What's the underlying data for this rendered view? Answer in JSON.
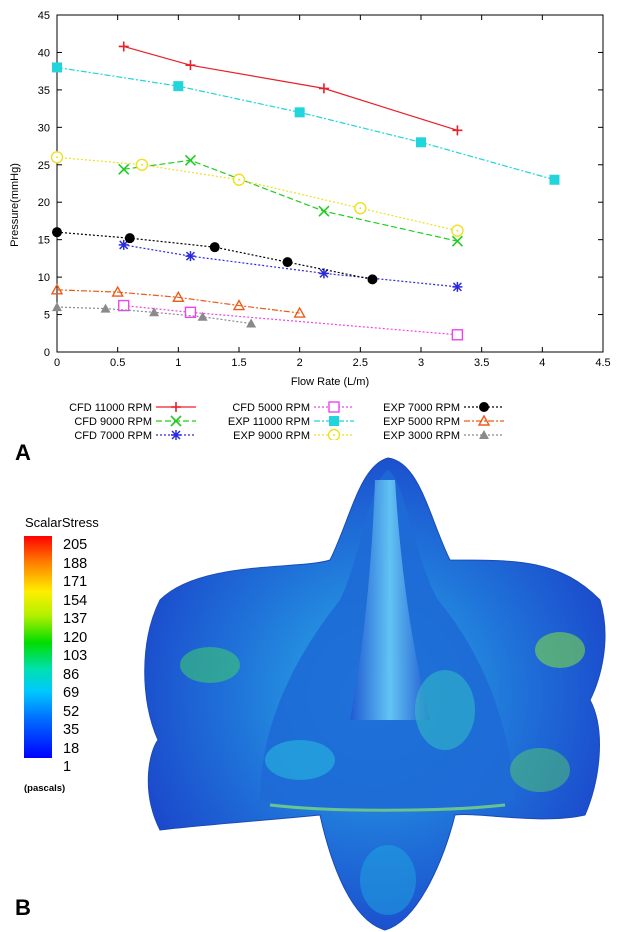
{
  "panel_labels": {
    "a": "A",
    "b": "B"
  },
  "chart_data": {
    "type": "line",
    "xlabel": "Flow Rate (L/m)",
    "ylabel": "Pressure(mmHg)",
    "xlim": [
      0,
      4.5
    ],
    "ylim": [
      0,
      45
    ],
    "xticks": [
      0,
      0.5,
      1,
      1.5,
      2,
      2.5,
      3,
      3.5,
      4,
      4.5
    ],
    "yticks": [
      0,
      5,
      10,
      15,
      20,
      25,
      30,
      35,
      40,
      45
    ],
    "xtick_labels": [
      "0",
      "0.5",
      "1",
      "1.5",
      "2",
      "2.5",
      "3",
      "3.5",
      "4",
      "4.5"
    ],
    "ytick_labels": [
      "0",
      "5",
      "10",
      "15",
      "20",
      "25",
      "30",
      "35",
      "40",
      "45"
    ],
    "grid": false,
    "legend_placement": "below",
    "series": [
      {
        "name": "CFD 11000 RPM",
        "color": "#e8202a",
        "marker": "plus",
        "dash": "solid",
        "x": [
          0.55,
          1.1,
          2.2,
          3.3
        ],
        "y": [
          40.8,
          38.3,
          35.2,
          29.6
        ]
      },
      {
        "name": "CFD 9000 RPM",
        "color": "#22cc22",
        "marker": "x",
        "dash": "dash",
        "x": [
          0.55,
          1.1,
          2.2,
          3.3
        ],
        "y": [
          24.4,
          25.6,
          18.8,
          14.8
        ]
      },
      {
        "name": "CFD 7000 RPM",
        "color": "#2a2ae0",
        "marker": "star",
        "dash": "dot",
        "x": [
          0.55,
          1.1,
          2.2,
          3.3
        ],
        "y": [
          14.3,
          12.8,
          10.5,
          8.7
        ]
      },
      {
        "name": "CFD 5000 RPM",
        "color": "#ee44ee",
        "marker": "square-open",
        "dash": "dot",
        "x": [
          0.55,
          1.1,
          3.3
        ],
        "y": [
          6.2,
          5.3,
          2.3
        ]
      },
      {
        "name": "EXP 11000 RPM",
        "color": "#22d4dc",
        "marker": "square",
        "dash": "dashdot",
        "x": [
          0,
          1,
          2,
          3,
          4.1
        ],
        "y": [
          38,
          35.5,
          32,
          28,
          23
        ]
      },
      {
        "name": "EXP 9000 RPM",
        "color": "#eee022",
        "marker": "circle-open",
        "dash": "dot",
        "x": [
          0,
          0.7,
          1.5,
          2.5,
          3.3
        ],
        "y": [
          26,
          25,
          23,
          19.2,
          16.2
        ]
      },
      {
        "name": "EXP 7000 RPM",
        "color": "#000000",
        "marker": "circle",
        "dash": "dot",
        "x": [
          0,
          0.6,
          1.3,
          1.9,
          2.6
        ],
        "y": [
          16,
          15.2,
          14,
          12,
          9.7
        ]
      },
      {
        "name": "EXP 5000 RPM",
        "color": "#ee5a1a",
        "marker": "triangle-open",
        "dash": "dashdot",
        "x": [
          0,
          0.5,
          1,
          1.5,
          2
        ],
        "y": [
          8.3,
          8,
          7.3,
          6.2,
          5.2
        ]
      },
      {
        "name": "EXP 3000 RPM",
        "color": "#8a8a8a",
        "marker": "triangle",
        "dash": "dot",
        "x": [
          0,
          0.4,
          0.8,
          1.2,
          1.6
        ],
        "y": [
          6,
          5.8,
          5.3,
          4.7,
          3.8
        ]
      }
    ]
  },
  "colorbar": {
    "title": "ScalarStress",
    "unit": "(pascals)",
    "ticks": [
      "205",
      "188",
      "171",
      "154",
      "137",
      "120",
      "103",
      "86",
      "69",
      "52",
      "35",
      "18",
      "1"
    ]
  }
}
